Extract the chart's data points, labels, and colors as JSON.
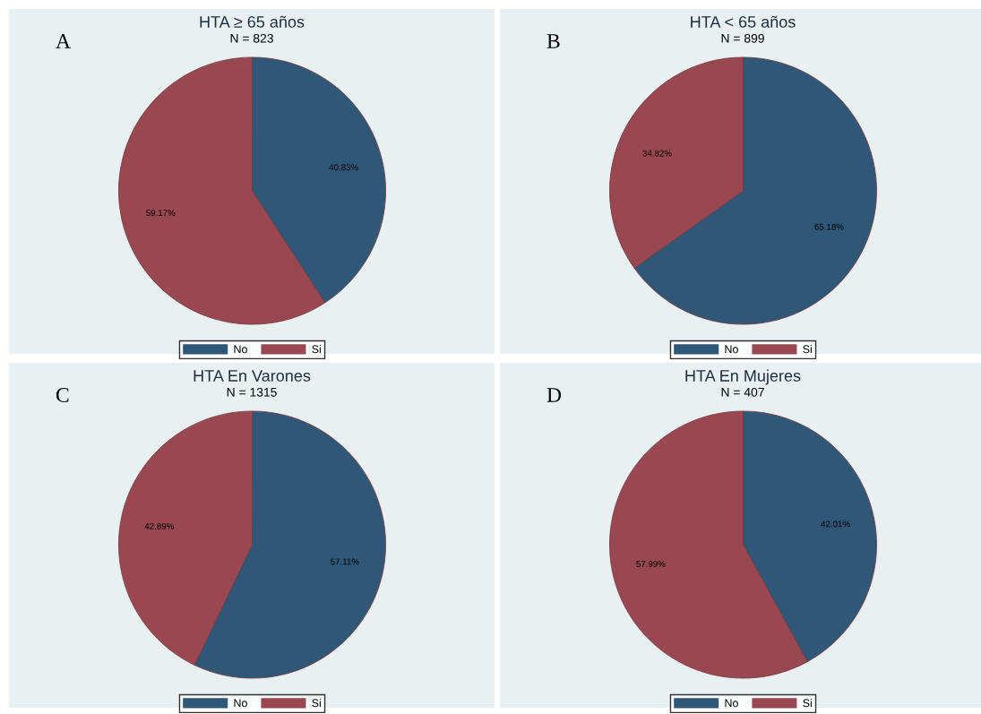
{
  "chart_data": [
    {
      "type": "pie",
      "title": "HTA ≥ 65 años",
      "subtitle": "N = 823",
      "annotations": [
        "A"
      ],
      "categories": [
        "No",
        "Si"
      ],
      "values": [
        40.83,
        59.17
      ],
      "colors": [
        "#2f5778",
        "#994750"
      ],
      "value_labels": [
        "40.83%",
        "59.17%"
      ],
      "legend": "bottom"
    },
    {
      "type": "pie",
      "title": "HTA < 65 años",
      "subtitle": "N = 899",
      "annotations": [
        "B"
      ],
      "categories": [
        "No",
        "Si"
      ],
      "values": [
        65.18,
        34.82
      ],
      "colors": [
        "#2f5778",
        "#994750"
      ],
      "value_labels": [
        "65.18%",
        "34.82%"
      ],
      "legend": "bottom"
    },
    {
      "type": "pie",
      "title": "HTA En Varones",
      "subtitle": "N = 1315",
      "annotations": [
        "C"
      ],
      "categories": [
        "No",
        "Si"
      ],
      "values": [
        57.11,
        42.89
      ],
      "colors": [
        "#2f5778",
        "#994750"
      ],
      "value_labels": [
        "57.11%",
        "42.89%"
      ],
      "legend": "bottom"
    },
    {
      "type": "pie",
      "title": "HTA En Mujeres",
      "subtitle": "N = 407",
      "annotations": [
        "D"
      ],
      "categories": [
        "No",
        "Si"
      ],
      "values": [
        42.01,
        57.99
      ],
      "colors": [
        "#2f5778",
        "#994750"
      ],
      "value_labels": [
        "42.01%",
        "57.99%"
      ],
      "legend": "bottom"
    }
  ]
}
